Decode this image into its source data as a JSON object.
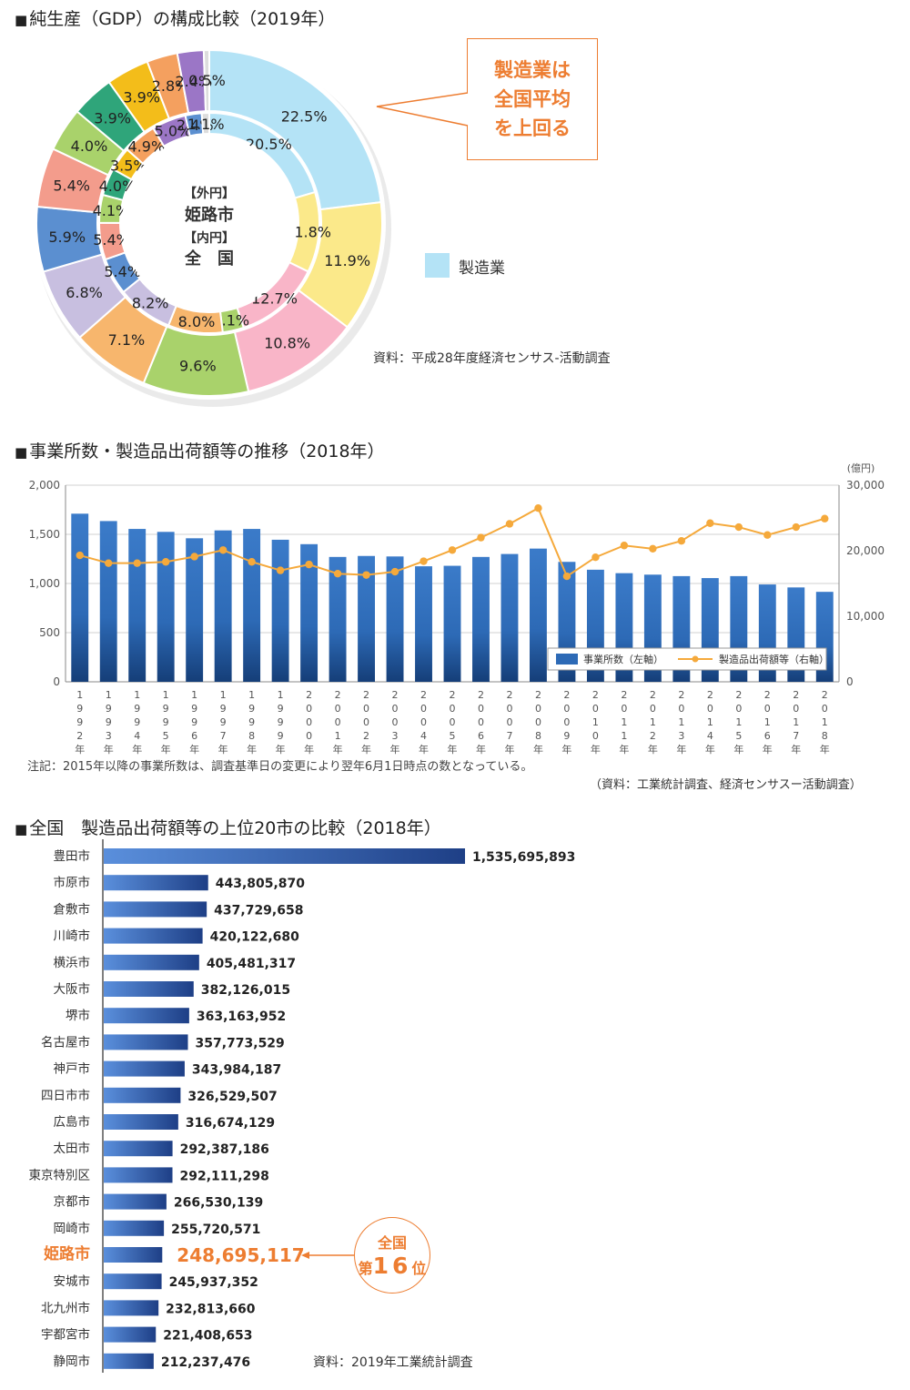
{
  "sections": {
    "s1_title": "純生産（GDP）の構成比較（2019年）",
    "s2_title": "事業所数・製造品出荷額等の推移（2018年）",
    "s3_title": "全国　製造品出荷額等の上位20市の比較（2018年）"
  },
  "callout": {
    "lines": [
      "製造業は",
      "全国平均",
      "を上回る"
    ]
  },
  "legend": {
    "label": "製造業",
    "color": "#b4e3f6"
  },
  "sources": {
    "s1": "資料：平成28年度経済センサス-活動調査",
    "s2": "（資料：工業統計調査、経済センサスー活動調査）",
    "s3": "資料：2019年工業統計調査"
  },
  "notes": {
    "s2": "注記：2015年以降の事業所数は、調査基準日の変更により翌年6月1日時点の数となっている。"
  },
  "badge": {
    "line1": "全国",
    "prefix": "第",
    "rank": "16",
    "suffix": "位"
  },
  "chart_data": [
    {
      "type": "pie",
      "title": "純生産（GDP）の構成比較（2019年）",
      "center_label": [
        "【外円】",
        "姫路市",
        "【内円】",
        "全　国"
      ],
      "series": [
        {
          "name": "姫路市",
          "ring": "outer",
          "values": [
            22.5,
            11.9,
            10.8,
            9.6,
            7.1,
            6.8,
            5.9,
            5.4,
            4.0,
            3.9,
            3.9,
            2.8,
            2.4,
            0.5
          ],
          "labels": [
            "22.5%",
            "11.9%",
            "10.8%",
            "9.6%",
            "7.1%",
            "6.8%",
            "5.9%",
            "5.4%",
            "4.0%",
            "3.9%",
            "3.9%",
            "2.8%",
            "2.4%",
            "0.5%"
          ],
          "colors": [
            "#b4e3f6",
            "#fbe98a",
            "#f9b5c8",
            "#a9d26b",
            "#f7b66d",
            "#c8bfe0",
            "#5b8fd0",
            "#f39c8c",
            "#a9d26b",
            "#2fa57a",
            "#f3bd1a",
            "#f4a05f",
            "#9b76c6",
            "#dddddd"
          ]
        },
        {
          "name": "全国",
          "ring": "inner",
          "values": [
            20.5,
            11.8,
            12.7,
            3.1,
            8.0,
            8.2,
            5.4,
            5.4,
            4.1,
            4.0,
            3.5,
            4.9,
            5.0,
            2.4,
            1.1
          ],
          "labels": [
            "20.5%",
            "11.8%",
            "12.7%",
            "3.1%",
            "8.0%",
            "8.2%",
            "5.4%",
            "5.4%",
            "4.1%",
            "4.0%",
            "3.5%",
            "4.9%",
            "5.0%",
            "2.4%",
            "1.1%"
          ],
          "colors": [
            "#b4e3f6",
            "#fbe98a",
            "#f9b5c8",
            "#a9d26b",
            "#f7b66d",
            "#c8bfe0",
            "#5b8fd0",
            "#f39c8c",
            "#a9d26b",
            "#2fa57a",
            "#f3bd1a",
            "#f4a05f",
            "#9b76c6",
            "#5b8fd0",
            "#dddddd"
          ]
        }
      ],
      "legend": [
        "製造業"
      ]
    },
    {
      "type": "bar",
      "title": "事業所数・製造品出荷額等の推移（2018年）",
      "categories": [
        "1992年",
        "1993年",
        "1994年",
        "1995年",
        "1996年",
        "1997年",
        "1998年",
        "1999年",
        "2000年",
        "2001年",
        "2002年",
        "2003年",
        "2004年",
        "2005年",
        "2006年",
        "2007年",
        "2008年",
        "2009年",
        "2010年",
        "2011年",
        "2012年",
        "2013年",
        "2014年",
        "2015年",
        "2016年",
        "2017年",
        "2018年"
      ],
      "series": [
        {
          "name": "事業所数（左軸）",
          "type": "bar",
          "axis": "left",
          "color": "#2d6ab6",
          "values": [
            1710,
            1635,
            1555,
            1525,
            1460,
            1540,
            1555,
            1445,
            1400,
            1270,
            1280,
            1275,
            1175,
            1180,
            1270,
            1300,
            1355,
            1220,
            1140,
            1105,
            1090,
            1075,
            1055,
            1075,
            990,
            960,
            915
          ]
        },
        {
          "name": "製造品出荷額等（右軸）",
          "type": "line",
          "axis": "right",
          "color": "#f5a93b",
          "values": [
            19300,
            18100,
            18100,
            18300,
            19100,
            20100,
            18300,
            17000,
            17900,
            16500,
            16300,
            16800,
            18400,
            20100,
            22000,
            24100,
            26500,
            16100,
            19000,
            20800,
            20300,
            21500,
            24200,
            23600,
            22400,
            23600,
            24900
          ]
        }
      ],
      "ylim_left": [
        0,
        2000
      ],
      "yticks_left": [
        "0",
        "500",
        "1,000",
        "1,500",
        "2,000"
      ],
      "ylim_right": [
        0,
        30000
      ],
      "yticks_right": [
        "0",
        "10,000",
        "20,000",
        "30,000"
      ],
      "right_unit": "(億円)",
      "legend_position": "bottom-right",
      "grid": true
    },
    {
      "type": "bar",
      "orientation": "horizontal",
      "title": "全国　製造品出荷額等の上位20市の比較（2018年）",
      "categories": [
        "豊田市",
        "市原市",
        "倉敷市",
        "川崎市",
        "横浜市",
        "大阪市",
        "堺市",
        "名古屋市",
        "神戸市",
        "四日市市",
        "広島市",
        "太田市",
        "東京特別区",
        "京都市",
        "岡崎市",
        "姫路市",
        "安城市",
        "北九州市",
        "宇都宮市",
        "静岡市"
      ],
      "values": [
        1535695893,
        443805870,
        437729658,
        420122680,
        405481317,
        382126015,
        363163952,
        357773529,
        343984187,
        326529507,
        316674129,
        292387186,
        292111298,
        266530139,
        255720571,
        248695117,
        245937352,
        232813660,
        221408653,
        212237476
      ],
      "value_labels": [
        "1,535,695,893",
        "443,805,870",
        "437,729,658",
        "420,122,680",
        "405,481,317",
        "382,126,015",
        "363,163,952",
        "357,773,529",
        "343,984,187",
        "326,529,507",
        "316,674,129",
        "292,387,186",
        "292,111,298",
        "266,530,139",
        "255,720,571",
        "248,695,117",
        "245,937,352",
        "232,813,660",
        "221,408,653",
        "212,237,476"
      ],
      "highlight": "姫路市",
      "highlight_color": "#ed7d31",
      "bar_color": "#2d5fa8"
    }
  ]
}
